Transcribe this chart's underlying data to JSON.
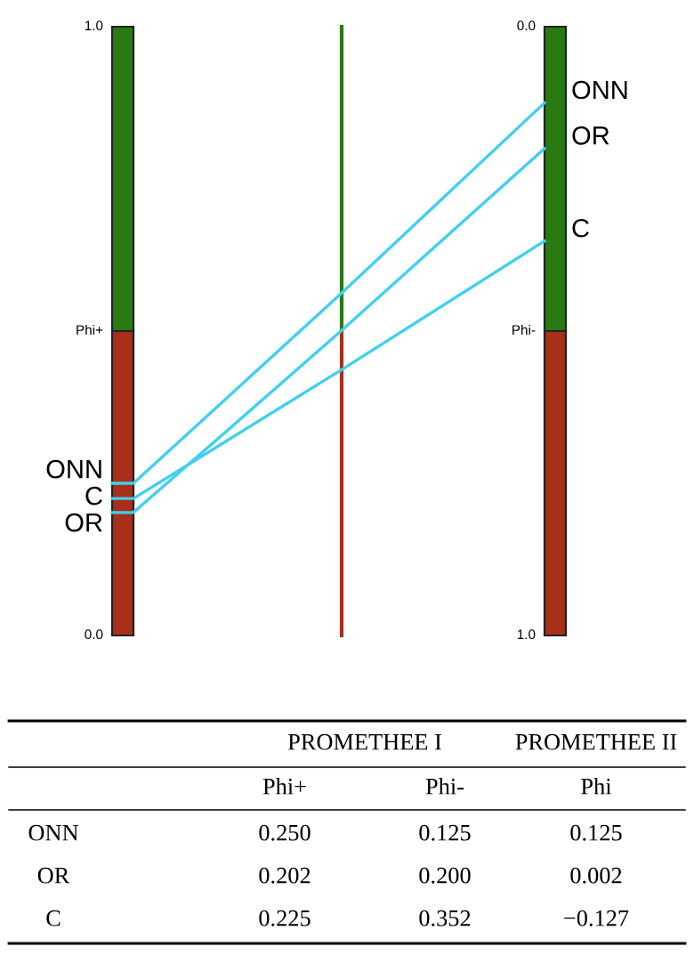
{
  "chart_data": {
    "type": "other",
    "categories": [
      "Phi+",
      "Phi-",
      "Phi"
    ],
    "data_labels": true,
    "annotations": [
      "PROMETHEE I",
      "PROMETHEE II",
      "1.0",
      "0.0"
    ],
    "series": [
      {
        "name": "ONN",
        "values": [
          0.25,
          0.125,
          0.125
        ],
        "value_labels": [
          "0.250",
          "0.125",
          "0.125"
        ]
      },
      {
        "name": "OR",
        "values": [
          0.202,
          0.2,
          0.002
        ],
        "value_labels": [
          "0.202",
          "0.200",
          "0.002"
        ]
      },
      {
        "name": "C",
        "values": [
          0.225,
          0.352,
          -0.127
        ],
        "value_labels": [
          "0.225",
          "0.352",
          "−0.127"
        ]
      }
    ]
  }
}
